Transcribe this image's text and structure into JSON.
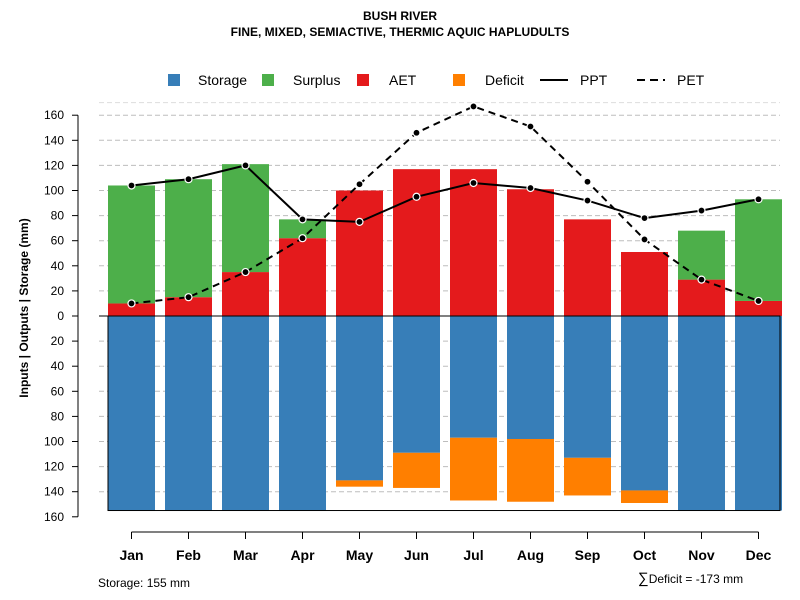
{
  "chart_data": {
    "type": "bar",
    "title": "BUSH RIVER",
    "subtitle": "FINE, MIXED, SEMIACTIVE, THERMIC AQUIC HAPLUDULTS",
    "ylabel": "Inputs | Outputs | Storage    (mm)",
    "categories": [
      "Jan",
      "Feb",
      "Mar",
      "Apr",
      "May",
      "Jun",
      "Jul",
      "Aug",
      "Sep",
      "Oct",
      "Nov",
      "Dec"
    ],
    "ylim": [
      -160,
      170
    ],
    "yticks": [
      160,
      140,
      120,
      100,
      80,
      60,
      40,
      20,
      0,
      20,
      40,
      60,
      80,
      100,
      120,
      140,
      160
    ],
    "legend": [
      "Storage",
      "Surplus",
      "AET",
      "Deficit",
      "PPT",
      "PET"
    ],
    "colors": {
      "storage": "#377eb8",
      "surplus": "#4daf4a",
      "aet": "#e41a1c",
      "deficit": "#ff7f00",
      "line": "#000000",
      "grid": "#bdbdbd"
    },
    "series": [
      {
        "name": "AET",
        "values": [
          10,
          15,
          35,
          62,
          100,
          117,
          117,
          101,
          77,
          51,
          29,
          12
        ]
      },
      {
        "name": "Surplus",
        "values": [
          94,
          94,
          86,
          15,
          0,
          0,
          0,
          0,
          0,
          0,
          39,
          81
        ]
      },
      {
        "name": "Storage",
        "values": [
          155,
          155,
          155,
          155,
          131,
          109,
          97,
          98,
          113,
          139,
          155,
          155
        ]
      },
      {
        "name": "Deficit",
        "values": [
          0,
          0,
          0,
          0,
          5,
          28,
          50,
          50,
          30,
          10,
          0,
          0
        ]
      },
      {
        "name": "PPT",
        "values": [
          104,
          109,
          120,
          77,
          75,
          95,
          106,
          102,
          92,
          78,
          84,
          93
        ]
      },
      {
        "name": "PET",
        "values": [
          10,
          15,
          35,
          62,
          105,
          146,
          167,
          151,
          107,
          61,
          29,
          12
        ]
      }
    ]
  },
  "footer": {
    "storage_text": "Storage: 155 mm",
    "deficit_symbol": "∑",
    "deficit_text": "Deficit = -173 mm"
  }
}
